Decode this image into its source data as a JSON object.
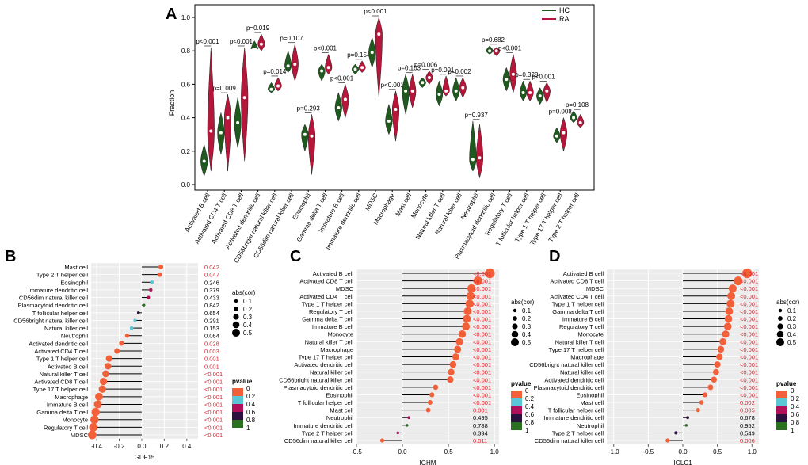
{
  "panel_labels": {
    "a": "A",
    "b": "B",
    "c": "C",
    "d": "D"
  },
  "colors": {
    "hc": "#1e5a1e",
    "ra": "#b5163a",
    "red_text": "#e8202a",
    "dot_red": "#f2603a",
    "dot_cyan": "#5bc7d6",
    "dot_magenta": "#b0105a",
    "dot_purple": "#2c1040",
    "dot_green": "#2a7020",
    "band": "#ececec"
  },
  "chart_data": [
    {
      "type": "violin",
      "panel": "A",
      "title": "",
      "xlabel": "",
      "ylabel": "Fraction",
      "ylim": [
        0,
        1.0
      ],
      "yticks": [
        "0.0",
        "0.2",
        "0.4",
        "0.6",
        "0.8",
        "1.0"
      ],
      "legend": {
        "position": "top-right",
        "entries": [
          "HC",
          "RA"
        ]
      },
      "series": [
        {
          "name": "HC",
          "min": [
            0.05,
            0.18,
            0.22,
            0.82,
            0.55,
            0.67,
            0.2,
            0.62,
            0.38,
            0.66,
            0.7,
            0.3,
            0.42,
            0.58,
            0.47,
            0.5,
            0.08,
            0.78,
            0.56,
            0.5,
            0.48,
            0.25,
            0.37
          ],
          "max": [
            0.24,
            0.43,
            0.52,
            0.86,
            0.61,
            0.8,
            0.36,
            0.72,
            0.55,
            0.72,
            0.88,
            0.48,
            0.66,
            0.64,
            0.62,
            0.64,
            0.38,
            0.83,
            0.7,
            0.62,
            0.58,
            0.34,
            0.44
          ],
          "median": [
            0.14,
            0.31,
            0.37,
            0.81,
            0.57,
            0.71,
            0.3,
            0.68,
            0.46,
            0.69,
            0.79,
            0.38,
            0.56,
            0.61,
            0.54,
            0.56,
            0.15,
            0.8,
            0.63,
            0.55,
            0.53,
            0.29,
            0.4
          ]
        },
        {
          "name": "RA",
          "min": [
            0.08,
            0.08,
            0.14,
            0.8,
            0.56,
            0.62,
            0.06,
            0.66,
            0.4,
            0.67,
            0.52,
            0.26,
            0.46,
            0.6,
            0.53,
            0.52,
            0.04,
            0.77,
            0.55,
            0.5,
            0.49,
            0.2,
            0.34
          ],
          "max": [
            0.82,
            0.54,
            0.82,
            0.9,
            0.64,
            0.84,
            0.42,
            0.78,
            0.6,
            0.74,
            1.0,
            0.56,
            0.66,
            0.68,
            0.65,
            0.64,
            0.36,
            0.82,
            0.78,
            0.62,
            0.61,
            0.4,
            0.42
          ],
          "median": [
            0.32,
            0.4,
            0.52,
            0.84,
            0.59,
            0.72,
            0.29,
            0.7,
            0.51,
            0.7,
            0.9,
            0.45,
            0.56,
            0.64,
            0.56,
            0.58,
            0.16,
            0.8,
            0.66,
            0.55,
            0.56,
            0.31,
            0.37
          ]
        }
      ],
      "categories": [
        "Activated B cell",
        "Activated CD4 T cell",
        "Activated CD8 T cell",
        "Activated dendritic cell",
        "CD56bright natural killer cell",
        "CD56dim natural killer cell",
        "Eosinophil",
        "Gamma delta T cell",
        "Immature  B cell",
        "Immature dendritic cell",
        "MDSC",
        "Macrophage",
        "Mast cell",
        "Monocyte",
        "Natural killer T cell",
        "Natural killer cell",
        "Neutrophil",
        "Plasmacytoid dendritic cell",
        "Regulatory T cell",
        "T follicular helper cell",
        "Type 1 T helper cell",
        "Type 17 T helper cell",
        "Type 2 T helper cell"
      ],
      "pvalues": [
        "p<0.001",
        "p=0.009",
        "p<0.001",
        "p=0.019",
        "p=0.014",
        "p=0.107",
        "p=0.293",
        "p<0.001",
        "p<0.001",
        "p=0.154",
        "p<0.001",
        "p<0.001",
        "p=0.103",
        "p=0.006",
        "p=0.001",
        "p=0.002",
        "p=0.937",
        "p=0.682",
        "p<0.001",
        "p=0.328",
        "p<0.001",
        "p=0.008",
        "p=0.108"
      ]
    },
    {
      "type": "lollipop",
      "panel": "B",
      "xlabel": "GDF15",
      "xlim": [
        -0.45,
        0.5
      ],
      "xticks": [
        -0.4,
        -0.2,
        0.0,
        0.2,
        0.4
      ],
      "xtick_labels": [
        "-0.4",
        "-0.2",
        "0.0",
        "0.2",
        "0.4"
      ],
      "legend_size_title": "abs(cor)",
      "legend_size_labels": [
        "0.1",
        "0.2",
        "0.3",
        "0.4",
        "0.5"
      ],
      "legend_color_title": "pvalue",
      "legend_color_labels": [
        "0",
        "0.2",
        "0.4",
        "0.6",
        "0.8",
        "1"
      ],
      "categories": [
        "Mast cell",
        "Type 2 T helper cell",
        "Eosinophil",
        "Immature dendritic cell",
        "CD56dim natural killer cell",
        "Plasmacytoid dendritic cell",
        "T follicular helper cell",
        "CD56bright natural killer cell",
        "Natural killer cell",
        "Neutrophil",
        "Activated dendritic cell",
        "Activated CD4 T cell",
        "Type 1 T helper cell",
        "Activated B cell",
        "Natural killer T cell",
        "Activated CD8 T cell",
        "Type 17 T helper cell",
        "Macrophage",
        "Immature  B cell",
        "Gamma delta T cell",
        "Monocyte",
        "Regulatory T cell",
        "MDSC"
      ],
      "values": [
        0.17,
        0.16,
        0.09,
        0.08,
        0.06,
        0.02,
        -0.03,
        -0.06,
        -0.09,
        -0.13,
        -0.18,
        -0.22,
        -0.29,
        -0.3,
        -0.32,
        -0.34,
        -0.35,
        -0.38,
        -0.39,
        -0.41,
        -0.42,
        -0.43,
        -0.44
      ],
      "pvalues": [
        "0.042",
        "0.047",
        "0.246",
        "0.379",
        "0.433",
        "0.842",
        "0.654",
        "0.291",
        "0.153",
        "0.064",
        "0.028",
        "0.003",
        "0.001",
        "0.001",
        "<0.001",
        "<0.001",
        "<0.001",
        "<0.001",
        "<0.001",
        "<0.001",
        "<0.001",
        "<0.001",
        "<0.001"
      ]
    },
    {
      "type": "lollipop",
      "panel": "C",
      "xlabel": "IGHM",
      "xlim": [
        -0.5,
        1.05
      ],
      "xticks": [
        -0.5,
        0.0,
        0.5,
        1.0
      ],
      "xtick_labels": [
        "-0.5",
        "0.0",
        "0.5",
        "1.0"
      ],
      "legend_size_title": "abs(cor)",
      "legend_size_labels": [
        "0.1",
        "0.2",
        "0.3",
        "0.4",
        "0.5"
      ],
      "legend_color_title": "pvalue",
      "legend_color_labels": [
        "0",
        "0.2",
        "0.4",
        "0.6",
        "0.8",
        "1"
      ],
      "categories": [
        "Activated B cell",
        "Activated CD8 T cell",
        "MDSC",
        "Activated CD4 T cell",
        "Type 1 T helper cell",
        "Regulatory T cell",
        "Gamma delta T cell",
        "Immature  B cell",
        "Monocyte",
        "Natural killer T cell",
        "Macrophage",
        "Type 17 T helper cell",
        "Activated dendritic cell",
        "Natural killer cell",
        "CD56bright natural killer cell",
        "Plasmacytoid dendritic cell",
        "Eosinophil",
        "T follicular helper cell",
        "Mast cell",
        "Neutrophil",
        "Immature dendritic cell",
        "Type 2 T helper cell",
        "CD56dim natural killer cell"
      ],
      "values": [
        0.95,
        0.82,
        0.75,
        0.74,
        0.73,
        0.71,
        0.7,
        0.69,
        0.65,
        0.62,
        0.6,
        0.58,
        0.55,
        0.53,
        0.52,
        0.36,
        0.32,
        0.3,
        0.28,
        0.07,
        0.05,
        -0.05,
        -0.22
      ],
      "pvalues": [
        "<0.001",
        "<0.001",
        "<0.001",
        "<0.001",
        "<0.001",
        "<0.001",
        "<0.001",
        "<0.001",
        "<0.001",
        "<0.001",
        "<0.001",
        "<0.001",
        "<0.001",
        "<0.001",
        "<0.001",
        "<0.001",
        "<0.001",
        "<0.001",
        "0.001",
        "0.495",
        "0.788",
        "0.394",
        "0.011"
      ]
    },
    {
      "type": "lollipop",
      "panel": "D",
      "xlabel": "IGLC1",
      "xlim": [
        -1.1,
        1.1
      ],
      "xticks": [
        -1.0,
        -0.5,
        0.0,
        0.5,
        1.0
      ],
      "xtick_labels": [
        "-1.0",
        "-0.5",
        "0.0",
        "0.5",
        "1.0"
      ],
      "legend_size_title": "abs(cor)",
      "legend_size_labels": [
        "0.1",
        "0.2",
        "0.3",
        "0.4",
        "0.5"
      ],
      "legend_color_title": "pvalue",
      "legend_color_labels": [
        "0",
        "0.2",
        "0.4",
        "0.6",
        "0.8",
        "1"
      ],
      "categories": [
        "Activated B cell",
        "Activated CD8 T cell",
        "MDSC",
        "Activated CD4 T cell",
        "Type 1 T helper cell",
        "Gamma delta T cell",
        "Immature  B cell",
        "Regulatory T cell",
        "Monocyte",
        "Natural killer T cell",
        "Type 17 T helper cell",
        "Macrophage",
        "CD56bright natural killer cell",
        "Natural killer cell",
        "Activated dendritic cell",
        "Plasmacytoid dendritic cell",
        "Eosinophil",
        "Mast cell",
        "T follicular helper cell",
        "Immature dendritic cell",
        "Neutrophil",
        "Type 2 T helper cell",
        "CD56dim natural killer cell"
      ],
      "values": [
        0.93,
        0.8,
        0.72,
        0.7,
        0.69,
        0.67,
        0.66,
        0.65,
        0.62,
        0.58,
        0.55,
        0.53,
        0.5,
        0.48,
        0.45,
        0.4,
        0.32,
        0.27,
        0.22,
        0.07,
        0.05,
        -0.1,
        -0.22
      ],
      "pvalues": [
        "<0.001",
        "<0.001",
        "<0.001",
        "<0.001",
        "<0.001",
        "<0.001",
        "<0.001",
        "<0.001",
        "<0.001",
        "<0.001",
        "<0.001",
        "<0.001",
        "<0.001",
        "<0.001",
        "<0.001",
        "<0.001",
        "<0.001",
        "0.002",
        "0.005",
        "0.678",
        "0.952",
        "0.549",
        "0.006"
      ]
    }
  ]
}
